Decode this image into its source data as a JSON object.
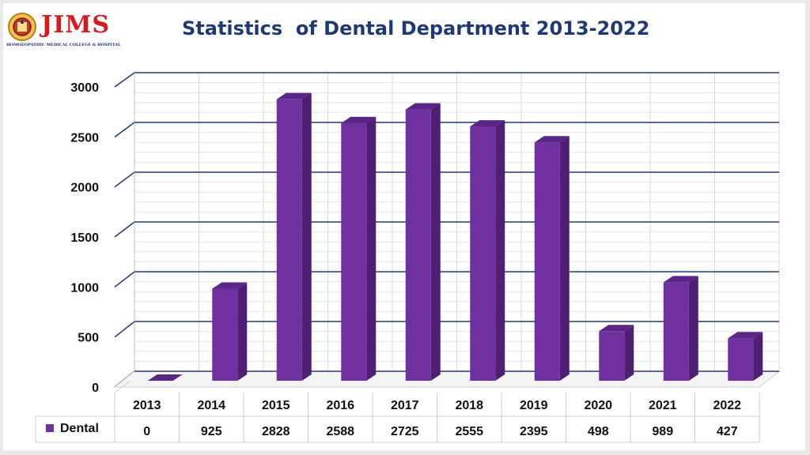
{
  "header": {
    "logo_text": "JIMS",
    "logo_subtext": "HOMOEOPATHIC MEDICAL COLLEGE & HOSPITAL",
    "title": "Statistics  of Dental Department 2013-2022"
  },
  "chart_data": {
    "type": "bar",
    "title": "Statistics  of Dental Department 2013-2022",
    "categories": [
      "2013",
      "2014",
      "2015",
      "2016",
      "2017",
      "2018",
      "2019",
      "2020",
      "2021",
      "2022"
    ],
    "series": [
      {
        "name": "Dental",
        "values": [
          0,
          925,
          2828,
          2588,
          2725,
          2555,
          2395,
          498,
          989,
          427
        ]
      }
    ],
    "y_ticks": [
      "0",
      "500",
      "1000",
      "1500",
      "2000",
      "2500",
      "3000"
    ],
    "ylim": [
      0,
      3000
    ],
    "grid": true,
    "legend": "data-table-left",
    "data_table": true,
    "colors": {
      "bar": "#7030a0",
      "bar_top": "#5b2585",
      "bar_side": "#4e1f73",
      "gridline": "#1f3a73",
      "title": "#1f3a73",
      "logo": "#d71920"
    }
  }
}
